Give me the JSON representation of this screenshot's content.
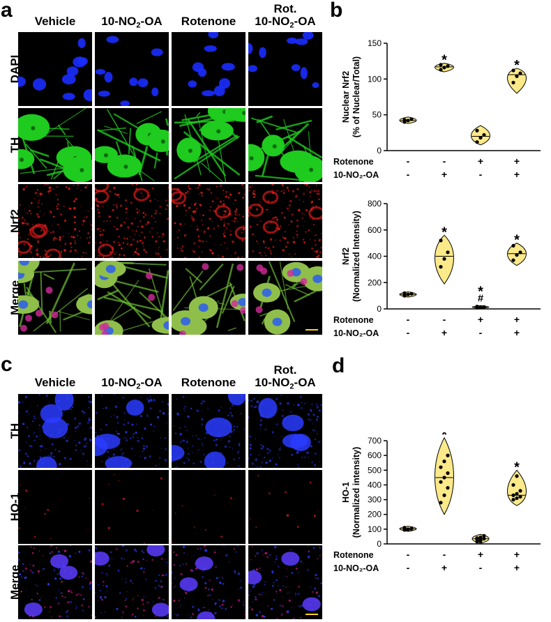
{
  "panel_a": {
    "letter": "a",
    "columns": [
      "Vehicle",
      "10-NO₂-OA",
      "Rotenone",
      "Rot.\n10-NO₂-OA"
    ],
    "rows": [
      "DAPI",
      "TH",
      "Nrf2",
      "Merge"
    ],
    "stain_colors": {
      "DAPI": "#1a2cff",
      "TH": "#1ecb1e",
      "Nrf2": "#e01818",
      "Merge": "mixed"
    }
  },
  "panel_c": {
    "letter": "c",
    "columns": [
      "Vehicle",
      "10-NO₂-OA",
      "Rotenone",
      "Rot.\n10-NO₂-OA"
    ],
    "rows": [
      "TH",
      "HO-1",
      "Merge"
    ],
    "stain_colors": {
      "TH": "#2a3cff",
      "HO-1": "#e01818",
      "Merge": "mixed"
    }
  },
  "panel_b": {
    "letter": "b"
  },
  "panel_d": {
    "letter": "d"
  },
  "treatments": {
    "rotenone_label": "Rotenone",
    "oa_label": "10-NO₂-OA",
    "rotenone": [
      "-",
      "-",
      "+",
      "+"
    ],
    "oa": [
      "-",
      "+",
      "-",
      "+"
    ]
  },
  "chart_data": [
    {
      "id": "b-top",
      "type": "violin",
      "ylabel": "Nuclear Nrf2\n(% of Nuclear/Total)",
      "ylim": [
        0,
        150
      ],
      "yticks": [
        0,
        50,
        100,
        150
      ],
      "groups": [
        {
          "points": [
            40,
            42,
            44,
            43
          ],
          "range": [
            38,
            47
          ],
          "median": 42,
          "sig": ""
        },
        {
          "points": [
            113,
            116,
            118,
            120
          ],
          "range": [
            110,
            122
          ],
          "median": 117,
          "sig": "*"
        },
        {
          "points": [
            12,
            18,
            22,
            28
          ],
          "range": [
            8,
            35
          ],
          "median": 20,
          "sig": ""
        },
        {
          "points": [
            95,
            104,
            108,
            112
          ],
          "range": [
            80,
            115
          ],
          "median": 106,
          "sig": "*"
        }
      ],
      "fill": "#fbe98a"
    },
    {
      "id": "b-bottom",
      "type": "violin",
      "ylabel": "Nrf2\n(Normalized Intensity)",
      "ylim": [
        0,
        800
      ],
      "yticks": [
        0,
        200,
        400,
        600,
        800
      ],
      "groups": [
        {
          "points": [
            100,
            110,
            115,
            120
          ],
          "range": [
            90,
            130
          ],
          "median": 110,
          "sig": ""
        },
        {
          "points": [
            320,
            380,
            430,
            520
          ],
          "range": [
            190,
            560
          ],
          "median": 400,
          "sig": "*"
        },
        {
          "points": [
            10,
            12,
            15,
            18
          ],
          "range": [
            5,
            25
          ],
          "median": 12,
          "sig": "*\n#"
        },
        {
          "points": [
            370,
            410,
            430,
            480
          ],
          "range": [
            330,
            500
          ],
          "median": 420,
          "sig": "*"
        }
      ],
      "fill": "#fbe98a"
    },
    {
      "id": "d",
      "type": "violin",
      "ylabel": "HO-1\n(Normalized intensity)",
      "ylim": [
        0,
        700
      ],
      "yticks": [
        0,
        100,
        200,
        300,
        400,
        500,
        600,
        700
      ],
      "groups": [
        {
          "points": [
            95,
            100,
            105,
            110,
            98,
            102,
            108,
            96
          ],
          "range": [
            85,
            120
          ],
          "median": 102,
          "sig": ""
        },
        {
          "points": [
            280,
            330,
            380,
            420,
            450,
            480,
            520,
            560,
            600
          ],
          "range": [
            200,
            720
          ],
          "median": 450,
          "sig": "*"
        },
        {
          "points": [
            15,
            25,
            35,
            40,
            45,
            55,
            30,
            20
          ],
          "range": [
            5,
            65
          ],
          "median": 35,
          "sig": ""
        },
        {
          "points": [
            300,
            310,
            320,
            330,
            340,
            360,
            400,
            460
          ],
          "range": [
            260,
            500
          ],
          "median": 330,
          "sig": "*"
        }
      ],
      "fill": "#fbe98a"
    }
  ]
}
